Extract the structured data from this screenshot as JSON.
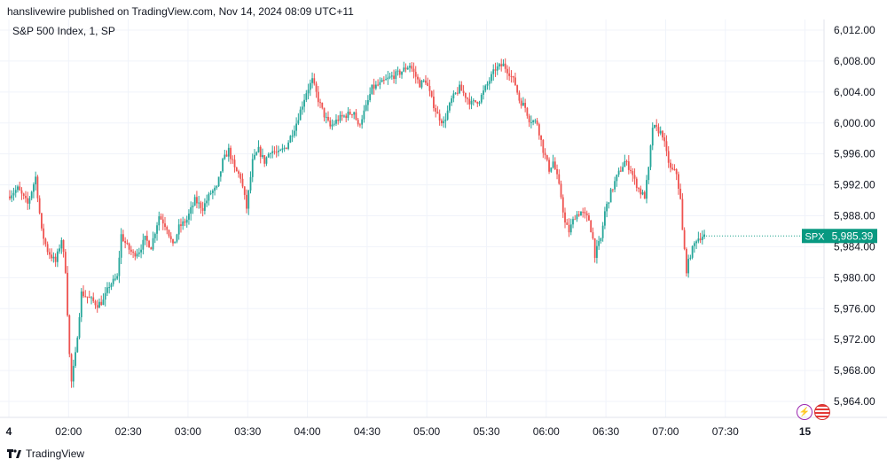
{
  "header": {
    "publish_note": "hanslivewire published on TradingView.com, Nov 14, 2024 08:09 UTC+11",
    "symbol_title": "S&P 500 Index, 1, SP"
  },
  "footer": {
    "brand": "TradingView"
  },
  "colors": {
    "up": "#26a69a",
    "down": "#ef5350",
    "grid": "#f0f3fa",
    "axis_text": "#131722",
    "label_bg": "#089981"
  },
  "icons": [
    "lightning-icon",
    "us-flag-icon",
    "tradingview-logo-icon"
  ],
  "chart_data": {
    "type": "candlestick",
    "title": "S&P 500 Index, 1, SP",
    "ylim": [
      5962,
      6014
    ],
    "y_ticks": [
      "6,012.00",
      "6,008.00",
      "6,004.00",
      "6,000.00",
      "5,996.00",
      "5,992.00",
      "5,988.00",
      "5,984.00",
      "5,980.00",
      "5,976.00",
      "5,972.00",
      "5,968.00",
      "5,964.00"
    ],
    "y_tick_values": [
      6012,
      6008,
      6004,
      6000,
      5996,
      5992,
      5988,
      5984,
      5980,
      5976,
      5972,
      5968,
      5964
    ],
    "x_ticks": [
      "4",
      "02:00",
      "02:30",
      "03:00",
      "03:30",
      "04:00",
      "04:30",
      "05:00",
      "05:30",
      "06:00",
      "06:30",
      "07:00",
      "07:30",
      "15"
    ],
    "x_tick_minutes": [
      90,
      120,
      150,
      180,
      210,
      240,
      270,
      300,
      330,
      360,
      390,
      420,
      450,
      490
    ],
    "x_range_minutes": [
      90,
      492
    ],
    "last_price_label": {
      "symbol": "SPX",
      "value": "5,985.39",
      "price": 5985.39
    },
    "waypoints": [
      [
        90,
        5990.5
      ],
      [
        95,
        5991.5
      ],
      [
        100,
        5989.5
      ],
      [
        104,
        5993
      ],
      [
        107,
        5986
      ],
      [
        110,
        5983.5
      ],
      [
        114,
        5982
      ],
      [
        117,
        5985
      ],
      [
        119,
        5981
      ],
      [
        121,
        5970
      ],
      [
        122,
        5966.5
      ],
      [
        124,
        5970
      ],
      [
        127,
        5978
      ],
      [
        130,
        5977.5
      ],
      [
        135,
        5976.5
      ],
      [
        138,
        5977
      ],
      [
        141,
        5979
      ],
      [
        145,
        5980
      ],
      [
        147,
        5985.5
      ],
      [
        150,
        5984
      ],
      [
        153,
        5983
      ],
      [
        156,
        5983.5
      ],
      [
        159,
        5985
      ],
      [
        162,
        5984
      ],
      [
        166,
        5988
      ],
      [
        170,
        5986.5
      ],
      [
        173,
        5984
      ],
      [
        176,
        5986.5
      ],
      [
        180,
        5987.5
      ],
      [
        184,
        5990
      ],
      [
        188,
        5989
      ],
      [
        192,
        5991
      ],
      [
        195,
        5991.5
      ],
      [
        198,
        5995
      ],
      [
        201,
        5996.5
      ],
      [
        204,
        5994
      ],
      [
        207,
        5993
      ],
      [
        210,
        5989
      ],
      [
        213,
        5995
      ],
      [
        216,
        5996.5
      ],
      [
        219,
        5995
      ],
      [
        222,
        5996.5
      ],
      [
        226,
        5996
      ],
      [
        230,
        5997
      ],
      [
        235,
        6000
      ],
      [
        240,
        6004
      ],
      [
        243,
        6005.5
      ],
      [
        246,
        6003
      ],
      [
        249,
        6001
      ],
      [
        252,
        5999.5
      ],
      [
        256,
        6000.5
      ],
      [
        260,
        6001
      ],
      [
        264,
        6001.5
      ],
      [
        266,
        5999.5
      ],
      [
        270,
        6002
      ],
      [
        273,
        6004.5
      ],
      [
        277,
        6005
      ],
      [
        280,
        6005.5
      ],
      [
        283,
        6006
      ],
      [
        287,
        6006.5
      ],
      [
        292,
        6007.5
      ],
      [
        295,
        6006
      ],
      [
        297,
        6005
      ],
      [
        300,
        6005.5
      ],
      [
        303,
        6003
      ],
      [
        306,
        6001
      ],
      [
        309,
        6000
      ],
      [
        313,
        6003
      ],
      [
        317,
        6004.5
      ],
      [
        320,
        6003.5
      ],
      [
        323,
        6002.5
      ],
      [
        327,
        6003
      ],
      [
        331,
        6005
      ],
      [
        335,
        6007
      ],
      [
        339,
        6007.5
      ],
      [
        342,
        6006.5
      ],
      [
        345,
        6005
      ],
      [
        347,
        6003
      ],
      [
        350,
        6002
      ],
      [
        352,
        6000.5
      ],
      [
        356,
        6000
      ],
      [
        359,
        5996.5
      ],
      [
        362,
        5994
      ],
      [
        364,
        5995
      ],
      [
        366,
        5993
      ],
      [
        368,
        5990.5
      ],
      [
        370,
        5987
      ],
      [
        372,
        5986
      ],
      [
        375,
        5988
      ],
      [
        378,
        5988.5
      ],
      [
        380,
        5988
      ],
      [
        382,
        5987.5
      ],
      [
        384,
        5985
      ],
      [
        385,
        5983
      ],
      [
        388,
        5985
      ],
      [
        390,
        5988.5
      ],
      [
        393,
        5991
      ],
      [
        396,
        5993
      ],
      [
        400,
        5995
      ],
      [
        403,
        5994
      ],
      [
        405,
        5992.5
      ],
      [
        408,
        5991
      ],
      [
        410,
        5990.5
      ],
      [
        412,
        5994
      ],
      [
        414,
        5999.5
      ],
      [
        417,
        5999
      ],
      [
        419,
        5998.5
      ],
      [
        421,
        5996
      ],
      [
        423,
        5994
      ],
      [
        426,
        5993.5
      ],
      [
        428,
        5990
      ],
      [
        429,
        5986
      ],
      [
        431,
        5981
      ],
      [
        433,
        5983
      ],
      [
        436,
        5985
      ],
      [
        439,
        5985.4
      ]
    ]
  }
}
